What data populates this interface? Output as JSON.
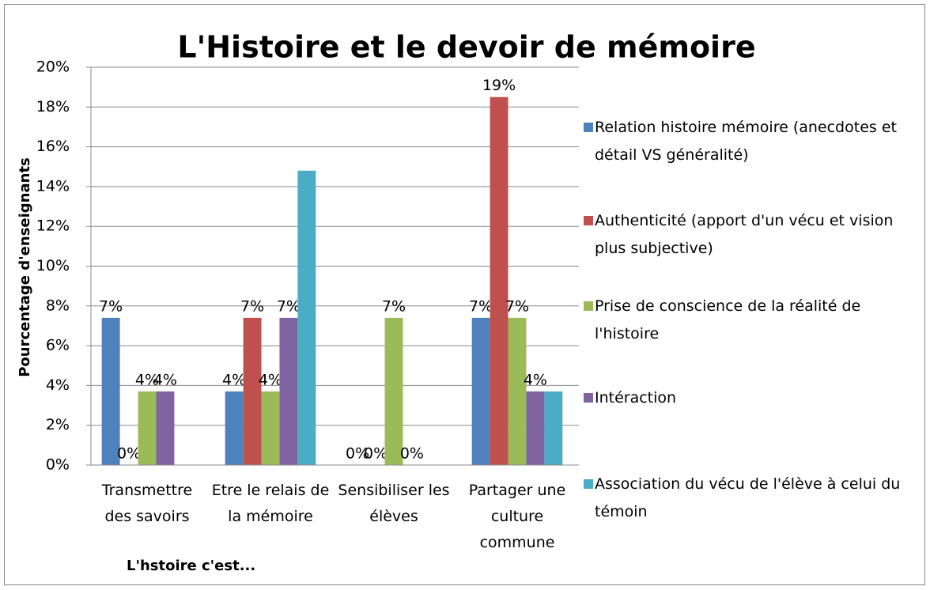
{
  "chart_data": {
    "type": "bar",
    "title": "L'Histoire et le devoir de mémoire",
    "y_label": "Pourcentage d'enseignants",
    "x_label": "L'hstoire c'est...",
    "categories": [
      "Transmettre des savoirs",
      "Etre le relais de la mémoire",
      "Sensibiliser les élèves",
      "Partager une culture commune"
    ],
    "series": [
      {
        "name": "Relation histoire mémoire (anecdotes et détail VS généralité)",
        "color": "#4f81bd",
        "values": [
          7.4,
          3.7,
          0,
          7.4
        ],
        "value_labels": [
          "7%",
          "4%",
          "0%",
          "7%"
        ]
      },
      {
        "name": "Authenticité (apport d'un vécu et vision plus subjective)",
        "color": "#c0504d",
        "values": [
          0,
          7.4,
          0,
          18.5
        ],
        "value_labels": [
          "0%",
          "7%",
          "0%",
          "19%"
        ]
      },
      {
        "name": "Prise de conscience de la réalité de l'histoire",
        "color": "#9bbb59",
        "values": [
          3.7,
          3.7,
          7.4,
          7.4
        ],
        "value_labels": [
          "4%",
          "4%",
          "7%",
          "7%"
        ]
      },
      {
        "name": "Intéraction",
        "color": "#8064a2",
        "values": [
          3.7,
          7.4,
          0,
          3.7
        ],
        "value_labels": [
          "4%",
          "7%",
          "0%",
          "4%"
        ]
      },
      {
        "name": "Association du vécu de l'élève à celui du témoin",
        "color": "#4bacc6",
        "values": [
          0,
          14.8,
          0,
          3.7
        ],
        "value_labels": [
          null,
          null,
          null,
          null
        ]
      }
    ],
    "ylim": [
      0,
      20
    ],
    "yticks": [
      {
        "value": 0,
        "label": "0%"
      },
      {
        "value": 2,
        "label": "2%"
      },
      {
        "value": 4,
        "label": "4%"
      },
      {
        "value": 6,
        "label": "6%"
      },
      {
        "value": 8,
        "label": "8%"
      },
      {
        "value": 10,
        "label": "10%"
      },
      {
        "value": 12,
        "label": "12%"
      },
      {
        "value": 14,
        "label": "14%"
      },
      {
        "value": 16,
        "label": "16%"
      },
      {
        "value": 18,
        "label": "18%"
      },
      {
        "value": 20,
        "label": "20%"
      }
    ],
    "grid": true,
    "legend": "right"
  }
}
